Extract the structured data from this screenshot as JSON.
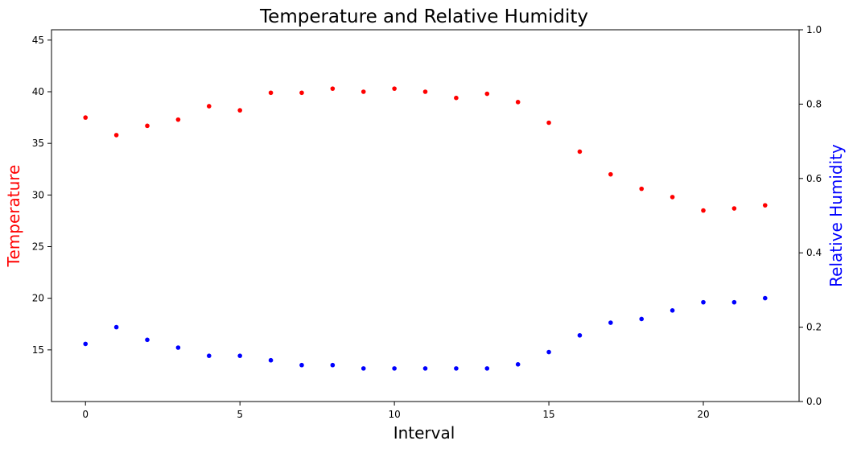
{
  "chart_data": {
    "type": "scatter",
    "title": "Temperature and Relative Humidity",
    "xlabel": "Interval",
    "ylabel_left": "Temperature",
    "ylabel_right": "Relative Humidity",
    "xlim": [
      -1.1,
      23.1
    ],
    "ylim_left": [
      10,
      46
    ],
    "ylim_right": [
      0.0,
      1.0
    ],
    "x_ticks": [
      0,
      5,
      10,
      15,
      20
    ],
    "y_left_ticks": [
      15,
      20,
      25,
      30,
      35,
      40,
      45
    ],
    "y_right_ticks": [
      "0.0",
      "0.2",
      "0.4",
      "0.6",
      "0.8",
      "1.0"
    ],
    "grid": false,
    "colors": {
      "temperature": "#ff0000",
      "humidity": "#0000ff",
      "ylabel_left": "#ff0000",
      "ylabel_right": "#0000ff"
    },
    "x": [
      0,
      1,
      2,
      3,
      4,
      5,
      6,
      7,
      8,
      9,
      10,
      11,
      12,
      13,
      14,
      15,
      16,
      17,
      18,
      19,
      20,
      21,
      22
    ],
    "series": [
      {
        "axis": "left",
        "values": [
          37.5,
          35.8,
          36.7,
          37.3,
          38.6,
          38.2,
          39.9,
          39.9,
          40.3,
          40.0,
          40.3,
          40.0,
          39.4,
          39.8,
          39.0,
          37.0,
          34.2,
          32.0,
          30.6,
          29.8,
          28.5,
          28.7,
          29.0
        ]
      },
      {
        "axis": "right",
        "values": [
          0.155,
          0.2,
          0.166,
          0.145,
          0.123,
          0.123,
          0.111,
          0.098,
          0.098,
          0.089,
          0.089,
          0.089,
          0.089,
          0.089,
          0.1,
          0.133,
          0.178,
          0.212,
          0.222,
          0.245,
          0.267,
          0.267,
          0.278
        ]
      }
    ]
  }
}
